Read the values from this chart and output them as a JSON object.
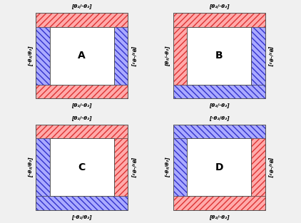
{
  "panels": [
    {
      "label": "A",
      "top_label": "[θ₂/-θ₂]",
      "bottom_label": "[θ₂/-θ₂]",
      "left_label": "[-θ₂/θ₂]",
      "right_label": "[θ₂/-θ₂]",
      "top_color": "red",
      "bottom_color": "red",
      "left_color": "blue",
      "right_color": "blue"
    },
    {
      "label": "B",
      "top_label": "[θ₂/-θ₂]",
      "bottom_label": "[θ₂/-θ₂]",
      "left_label": "[θ₂/-θ₂]",
      "right_label": "[θ₂/-θ₂]",
      "top_color": "red",
      "bottom_color": "blue",
      "left_color": "red",
      "right_color": "blue"
    },
    {
      "label": "C",
      "top_label": "[θ₂/-θ₂]",
      "bottom_label": "[-θ₂/θ₂]",
      "left_label": "[-θ₂/θ₂]",
      "right_label": "[θ₂/-θ₂]",
      "top_color": "red",
      "bottom_color": "blue",
      "left_color": "blue",
      "right_color": "red"
    },
    {
      "label": "D",
      "top_label": "[-θ₂/θ₂]",
      "bottom_label": "[θ₂/-θ₂]",
      "left_label": "[-θ₂/θ₂]",
      "right_label": "[θ₂/-θ₂]",
      "top_color": "blue",
      "bottom_color": "red",
      "left_color": "blue",
      "right_color": "red"
    }
  ],
  "red_hatch_color": "#dd3333",
  "blue_hatch_color": "#3333cc",
  "red_face_color": "#ffaaaa",
  "blue_face_color": "#aaaaff",
  "bg_color": "#f0f0f0",
  "wall_bg_color": "#cccccc",
  "border_color": "#555555"
}
